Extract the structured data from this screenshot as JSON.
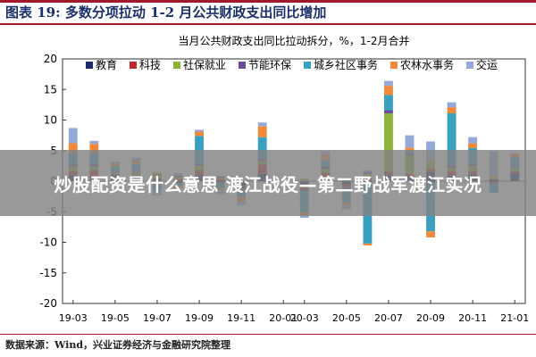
{
  "header": {
    "title": "图表 19: 多数分项拉动 1-2 月公共财政支出同比增加"
  },
  "source": "数据来源：Wind，兴业证券经济与金融研究院整理",
  "overlay": {
    "text": "炒股配资是什么意思 渡江战役—第二野战军渡江实况"
  },
  "colors": {
    "accent": "#1a2f6b",
    "rule": "#a0182a"
  },
  "chart_data": {
    "type": "bar",
    "stacked": true,
    "title": "当月公共财政支出同比拉动拆分，%，1-2月合并",
    "xlabel": "",
    "ylabel": "",
    "ylim": [
      -20,
      20
    ],
    "yticks": [
      20,
      15,
      10,
      5,
      0,
      -5,
      -10,
      -15,
      -20
    ],
    "categories": [
      "19-03",
      "19-04",
      "19-05",
      "19-06",
      "19-07",
      "19-08",
      "19-09",
      "19-10",
      "19-11",
      "19-12",
      "20-01",
      "20-03",
      "20-04",
      "20-05",
      "20-06",
      "20-07",
      "20-08",
      "20-09",
      "20-10",
      "20-11",
      "20-12",
      "21-01"
    ],
    "xtick_labels": [
      "19-03",
      "19-05",
      "19-07",
      "19-09",
      "19-11",
      "20-01",
      "20-03",
      "20-05",
      "20-07",
      "20-09",
      "20-11",
      "21-01"
    ],
    "legend_position": "top",
    "series": [
      {
        "name": "教育",
        "color": "#1f2a6e",
        "values": [
          1.0,
          0.8,
          0.8,
          0.6,
          0.3,
          -0.3,
          1.0,
          -0.2,
          -1.0,
          1.2,
          0,
          -0.8,
          0.6,
          -0.5,
          -0.2,
          1.0,
          0.8,
          1.5,
          1.0,
          1.2,
          0.3,
          1.3
        ]
      },
      {
        "name": "科技",
        "color": "#c0282a",
        "values": [
          0.6,
          1.0,
          0.3,
          0.4,
          0.2,
          0.3,
          0.8,
          0.3,
          -0.3,
          1.5,
          0,
          -0.5,
          0.8,
          -0.4,
          0.6,
          0.6,
          0.4,
          0.5,
          0.6,
          0.4,
          -0.2,
          0.3
        ]
      },
      {
        "name": "社保就业",
        "color": "#8db33a",
        "values": [
          0.8,
          0.6,
          0.4,
          0.5,
          0.4,
          0.4,
          0.7,
          0.3,
          -0.2,
          0.6,
          0,
          0.4,
          0.6,
          0.6,
          0.6,
          9.5,
          3.0,
          1.5,
          0.6,
          0.9,
          0.3,
          0.6
        ]
      },
      {
        "name": "节能环保",
        "color": "#6a4a9a",
        "values": [
          0.3,
          0.4,
          0.2,
          0.3,
          0.2,
          0.2,
          0.4,
          0.2,
          -0.3,
          0.4,
          0,
          -0.3,
          0.4,
          -0.2,
          0.3,
          0.5,
          0.3,
          -0.2,
          0.4,
          0.4,
          -0.2,
          0.2
        ]
      },
      {
        "name": "城乡社区事务",
        "color": "#3aa0c0",
        "values": [
          2.0,
          1.8,
          0.8,
          1.0,
          -1.5,
          -0.5,
          4.5,
          -1.0,
          -0.8,
          3.5,
          0,
          -3.5,
          1.0,
          -2.5,
          -10.0,
          2.5,
          0.5,
          -8.0,
          8.5,
          2.5,
          -1.5,
          1.5
        ]
      },
      {
        "name": "农林水事务",
        "color": "#f08a3a",
        "values": [
          1.5,
          1.5,
          0.4,
          0.6,
          0.3,
          -0.4,
          0.7,
          -0.3,
          -0.8,
          1.8,
          0,
          -0.5,
          1.0,
          -0.4,
          -0.3,
          1.5,
          0.5,
          -1.0,
          1.0,
          0.8,
          0.3,
          0.5
        ]
      },
      {
        "name": "交运",
        "color": "#95a9d9",
        "values": [
          2.5,
          0.5,
          0.3,
          0.4,
          -0.8,
          0.4,
          0.3,
          -0.6,
          -0.5,
          0.6,
          0,
          -0.4,
          0.5,
          -0.6,
          0.3,
          0.8,
          2.0,
          3.0,
          0.8,
          1.0,
          4.0,
          0.2
        ]
      }
    ]
  }
}
